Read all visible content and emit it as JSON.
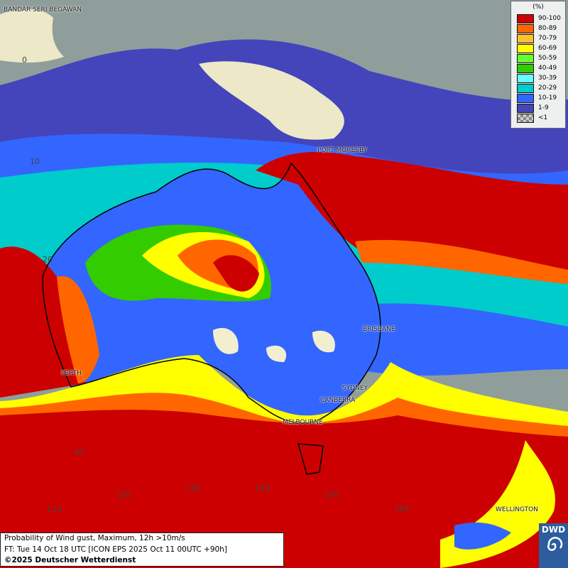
{
  "map": {
    "title": "Probability of Wind gust, Maximum, 12h >10m/s",
    "forecast_time": "FT: Tue 14 Oct 18 UTC [ICON EPS 2025 Oct 11 00UTC +90h]",
    "copyright": "©2025 Deutscher Wetterdienst",
    "logo_text": "DWD",
    "cities": [
      "BANDAR SERI BEGAWAN",
      "PORT MORESBY",
      "BRISBANE",
      "PERTH",
      "SYDNEY",
      "CANBERRA",
      "MELBOURNE",
      "WELLINGTON"
    ],
    "latitude_labels": [
      "0",
      "10",
      "20",
      "40"
    ],
    "longitude_labels": [
      "110",
      "120",
      "130",
      "140",
      "150",
      "160"
    ]
  },
  "legend": {
    "unit": "(%)",
    "classes": [
      {
        "label": "90-100",
        "color": "#cc0000"
      },
      {
        "label": "80-89",
        "color": "#ff6600"
      },
      {
        "label": "70-79",
        "color": "#ffc030"
      },
      {
        "label": "60-69",
        "color": "#ffff00"
      },
      {
        "label": "50-59",
        "color": "#66ff33"
      },
      {
        "label": "40-49",
        "color": "#33cc00"
      },
      {
        "label": "30-39",
        "color": "#66ffff"
      },
      {
        "label": "20-29",
        "color": "#00cccc"
      },
      {
        "label": "10-19",
        "color": "#3366ff"
      },
      {
        "label": "1-9",
        "color": "#4444bb"
      },
      {
        "label": "<1",
        "color": "#aaaaaa"
      }
    ]
  }
}
